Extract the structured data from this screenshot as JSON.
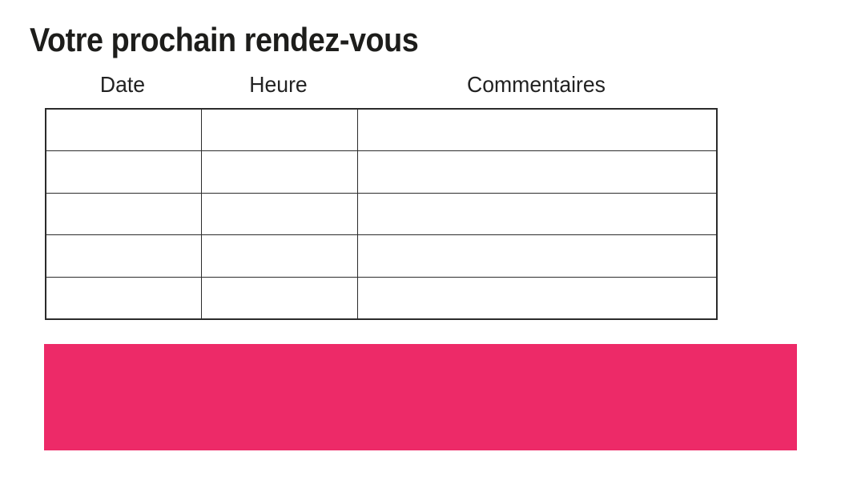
{
  "page": {
    "title": "Votre prochain rendez-vous"
  },
  "table": {
    "columns": [
      {
        "label": "Date"
      },
      {
        "label": "Heure"
      },
      {
        "label": "Commentaires"
      }
    ],
    "rows": [
      [
        "",
        "",
        ""
      ],
      [
        "",
        "",
        ""
      ],
      [
        "",
        "",
        ""
      ],
      [
        "",
        "",
        ""
      ],
      [
        "",
        "",
        ""
      ]
    ]
  },
  "colors": {
    "accent_pink": "#ED2A68",
    "border": "#2B2B2B",
    "text": "#1D1D1B"
  }
}
